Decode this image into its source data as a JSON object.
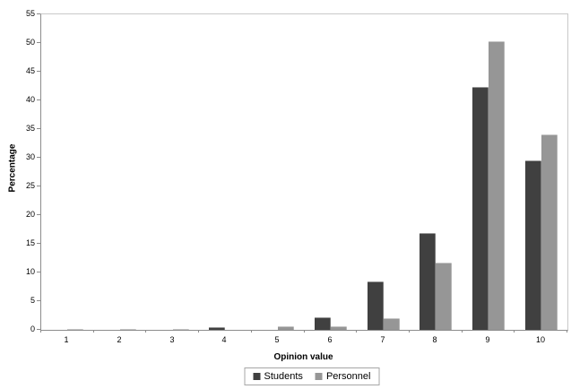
{
  "chart_data": {
    "type": "bar",
    "title": "",
    "xlabel": "Opinion value",
    "ylabel": "Percentage",
    "categories": [
      "1",
      "2",
      "3",
      "4",
      "5",
      "6",
      "7",
      "8",
      "9",
      "10"
    ],
    "series": [
      {
        "name": "Students",
        "color": "#404040",
        "values": [
          0,
          0,
          0,
          0.4,
          0,
          2.2,
          8.5,
          16.8,
          42.3,
          29.5
        ]
      },
      {
        "name": "Personnel",
        "color": "#969696",
        "values": [
          0.2,
          0.2,
          0.2,
          0,
          0.6,
          0.6,
          2.0,
          11.7,
          50.3,
          34.0
        ]
      }
    ],
    "ylim": [
      0,
      55
    ],
    "y_ticks": [
      0,
      5,
      10,
      15,
      20,
      25,
      30,
      35,
      40,
      45,
      50,
      55
    ],
    "grid": false,
    "legend_position": "bottom"
  },
  "colors": {
    "axis": "#8c8c8c",
    "plot_border": "#c9c9c9",
    "students_bar": "#404040",
    "personnel_bar": "#969696",
    "legend_border": "#a6a6a6",
    "background": "#ffffff",
    "text": "#000000"
  }
}
